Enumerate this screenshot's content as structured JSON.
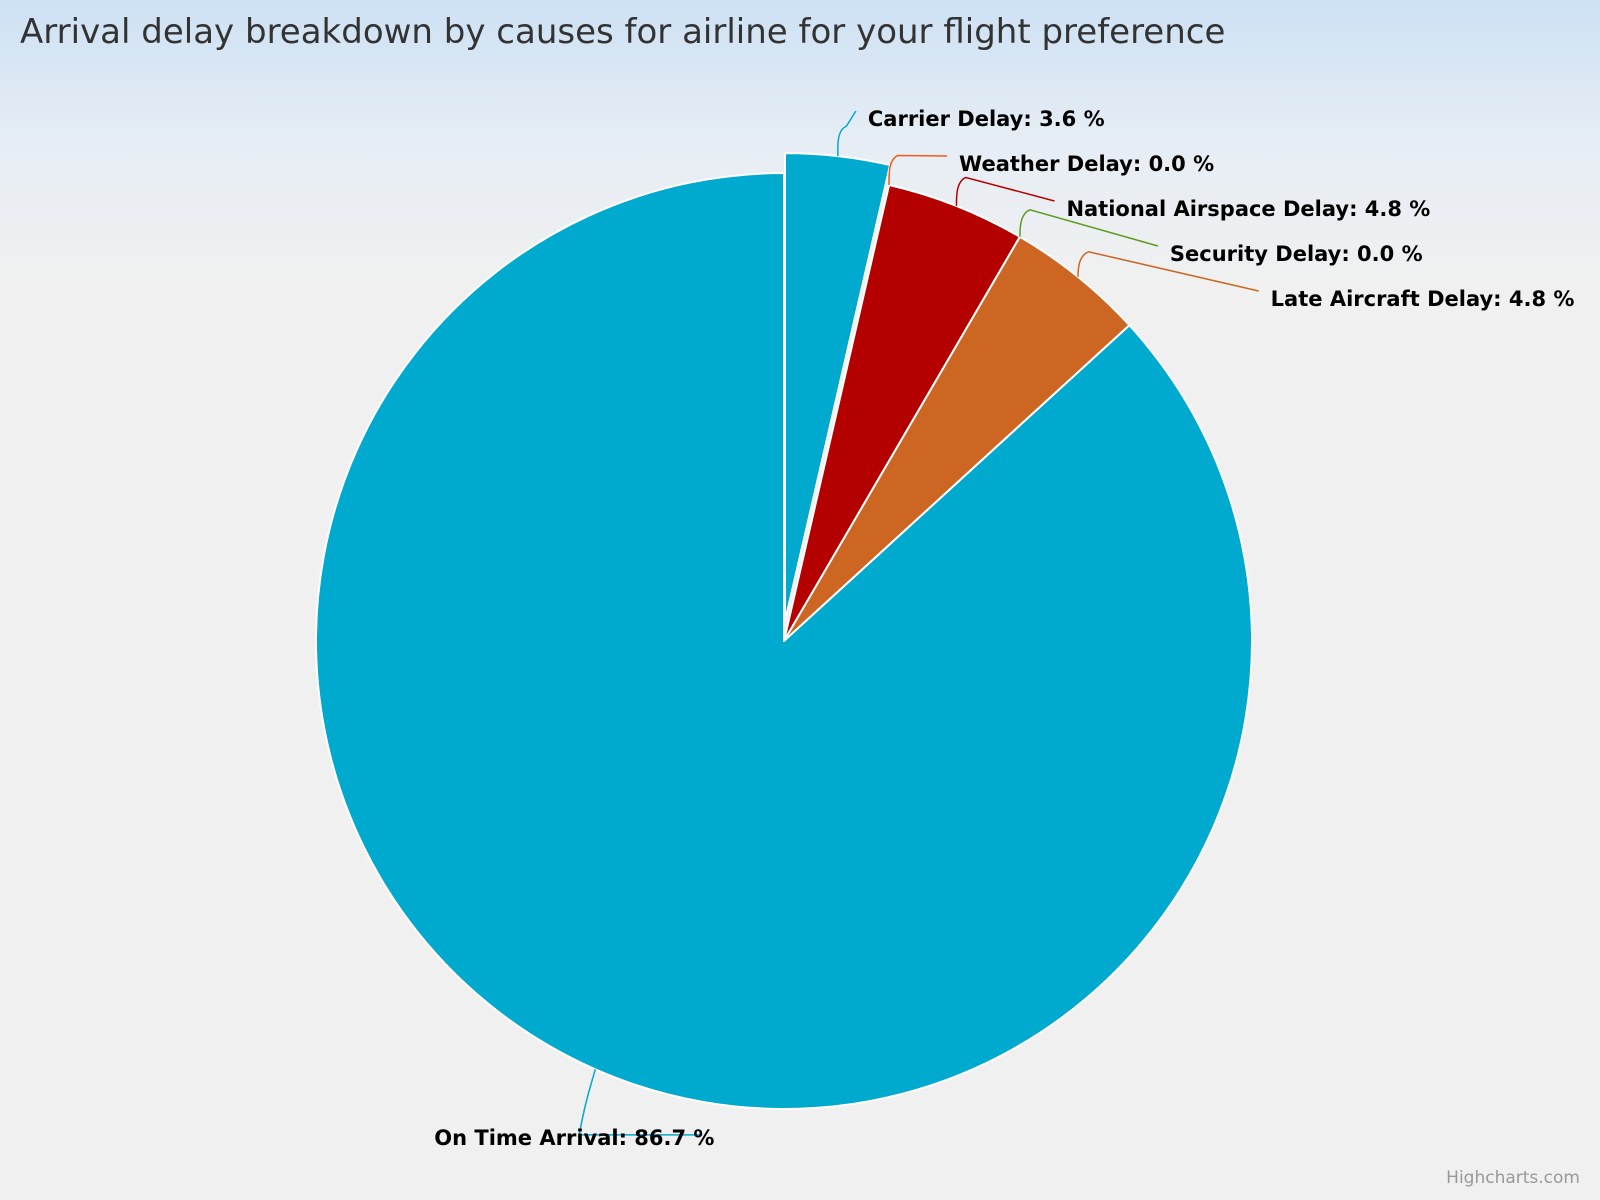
{
  "chart_data": {
    "type": "pie",
    "title": "Arrival delay breakdown by causes for airline for your flight preference",
    "label_suffix": " %",
    "slices": [
      {
        "name": "Carrier Delay",
        "value": 3.6,
        "label": "Carrier Delay: 3.6 %",
        "color": "#00a9ce",
        "connector_color": "#00a9ce",
        "sliced": true
      },
      {
        "name": "Weather Delay",
        "value": 0.0,
        "label": "Weather Delay: 0.0 %",
        "color": "#f05a1e",
        "connector_color": "#f05a1e",
        "sliced": false
      },
      {
        "name": "National Airspace Delay",
        "value": 4.8,
        "label": "National Airspace Delay: 4.8 %",
        "color": "#b50000",
        "connector_color": "#b50000",
        "sliced": false
      },
      {
        "name": "Security Delay",
        "value": 0.0,
        "label": "Security Delay: 0.0 %",
        "color": "#5e9b1f",
        "connector_color": "#5e9b1f",
        "sliced": false
      },
      {
        "name": "Late Aircraft Delay",
        "value": 4.8,
        "label": "Late Aircraft Delay: 4.8 %",
        "color": "#cc6622",
        "connector_color": "#cc6622",
        "sliced": false
      },
      {
        "name": "On Time Arrival",
        "value": 86.7,
        "label": "On Time Arrival: 86.7 %",
        "color": "#00a9ce",
        "connector_color": "#00a9ce",
        "sliced": false
      }
    ]
  },
  "credits": "Highcharts.com"
}
